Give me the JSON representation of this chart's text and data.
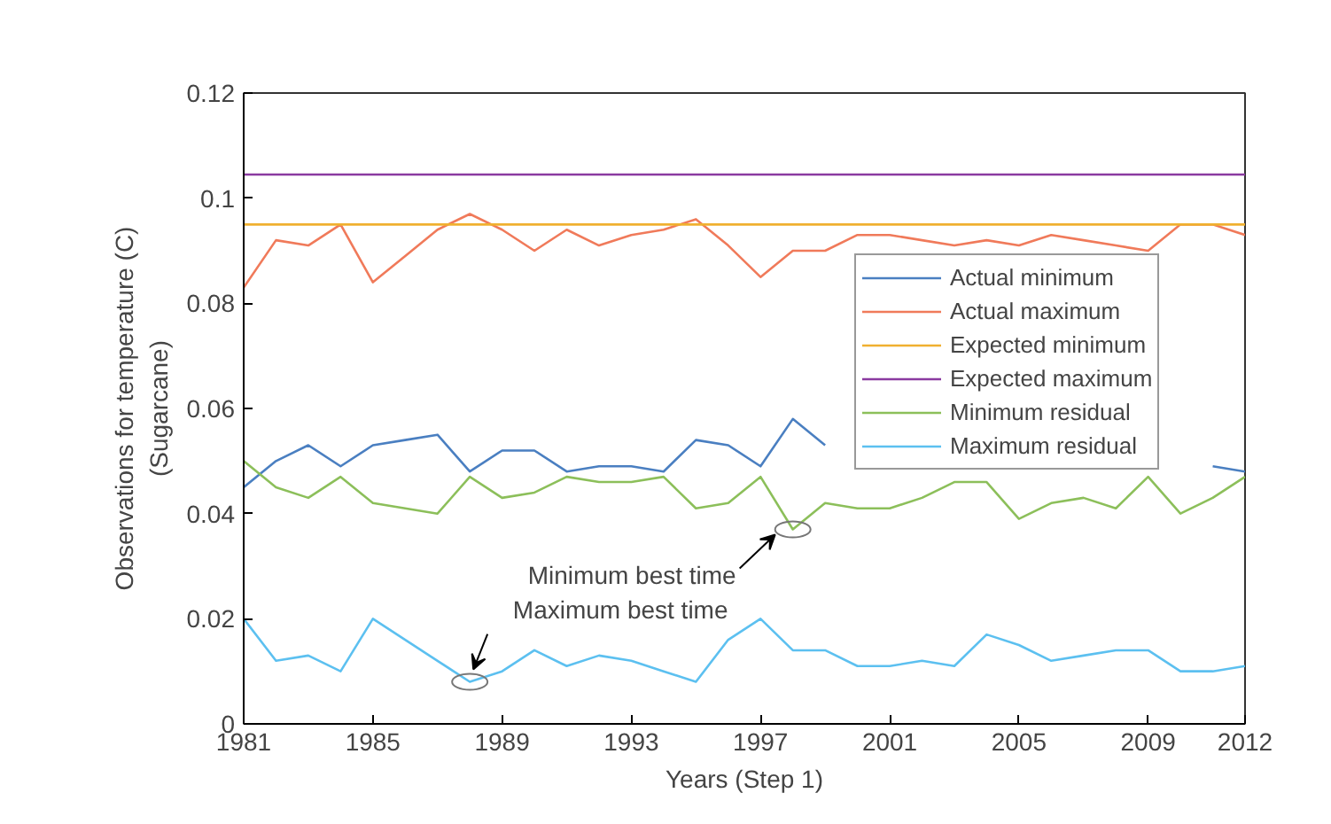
{
  "chart_data": {
    "type": "line",
    "xlabel": "Years (Step 1)",
    "ylabel": "Observations for temperature (C)\n(Sugarcane)",
    "x": [
      1981,
      1982,
      1983,
      1984,
      1985,
      1986,
      1987,
      1988,
      1989,
      1990,
      1991,
      1992,
      1993,
      1994,
      1995,
      1996,
      1997,
      1998,
      1999,
      2000,
      2001,
      2002,
      2003,
      2004,
      2005,
      2006,
      2007,
      2008,
      2009,
      2010,
      2011,
      2012
    ],
    "xlim": [
      1981,
      2012
    ],
    "xticks": [
      1981,
      1985,
      1989,
      1993,
      1997,
      2001,
      2005,
      2009,
      2012
    ],
    "ylim": [
      0,
      0.12
    ],
    "yticks": [
      0,
      0.02,
      0.04,
      0.06,
      0.08,
      0.1,
      0.12
    ],
    "grid": false,
    "legend": "top right",
    "marker": "none",
    "line_style": "solid",
    "series": [
      {
        "name": "Actual minimum",
        "color": "#4a7fc1",
        "values": [
          0.045,
          0.05,
          0.053,
          0.049,
          0.053,
          0.054,
          0.055,
          0.048,
          0.052,
          0.052,
          0.048,
          0.049,
          0.049,
          0.048,
          0.054,
          0.053,
          0.049,
          0.058,
          0.053,
          null,
          null,
          null,
          null,
          null,
          null,
          null,
          null,
          null,
          null,
          null,
          0.049,
          0.048
        ]
      },
      {
        "name": "Actual maximum",
        "color": "#f07a5a",
        "values": [
          0.083,
          0.092,
          0.091,
          0.095,
          0.084,
          0.089,
          0.094,
          0.097,
          0.094,
          0.09,
          0.094,
          0.091,
          0.093,
          0.094,
          0.096,
          0.091,
          0.085,
          0.09,
          0.09,
          0.093,
          0.093,
          0.092,
          0.091,
          0.092,
          0.091,
          0.093,
          0.092,
          0.091,
          0.09,
          0.095,
          0.095,
          0.093
        ]
      },
      {
        "name": "Expected minimum",
        "color": "#f0b030",
        "values": [
          0.095,
          0.095,
          0.095,
          0.095,
          0.095,
          0.095,
          0.095,
          0.095,
          0.095,
          0.095,
          0.095,
          0.095,
          0.095,
          0.095,
          0.095,
          0.095,
          0.095,
          0.095,
          0.095,
          0.095,
          0.095,
          0.095,
          0.095,
          0.095,
          0.095,
          0.095,
          0.095,
          0.095,
          0.095,
          0.095,
          0.095,
          0.095
        ]
      },
      {
        "name": "Expected maximum",
        "color": "#8a3aa0",
        "values": [
          0.1045,
          0.1045,
          0.1045,
          0.1045,
          0.1045,
          0.1045,
          0.1045,
          0.1045,
          0.1045,
          0.1045,
          0.1045,
          0.1045,
          0.1045,
          0.1045,
          0.1045,
          0.1045,
          0.1045,
          0.1045,
          0.1045,
          0.1045,
          0.1045,
          0.1045,
          0.1045,
          0.1045,
          0.1045,
          0.1045,
          0.1045,
          0.1045,
          0.1045,
          0.1045,
          0.1045,
          0.1045
        ]
      },
      {
        "name": "Minimum residual",
        "color": "#8cbf5a",
        "values": [
          0.05,
          0.045,
          0.043,
          0.047,
          0.042,
          0.041,
          0.04,
          0.047,
          0.043,
          0.044,
          0.047,
          0.046,
          0.046,
          0.047,
          0.041,
          0.042,
          0.047,
          0.037,
          0.042,
          0.041,
          0.041,
          0.043,
          0.046,
          0.046,
          0.039,
          0.042,
          0.043,
          0.041,
          0.047,
          0.04,
          0.043,
          0.047
        ]
      },
      {
        "name": "Maximum residual",
        "color": "#5cc0f0",
        "values": [
          0.02,
          0.012,
          0.013,
          0.01,
          0.02,
          0.016,
          0.012,
          0.008,
          0.01,
          0.014,
          0.011,
          0.013,
          0.012,
          0.01,
          0.008,
          0.016,
          0.02,
          0.014,
          0.014,
          0.011,
          0.011,
          0.012,
          0.011,
          0.017,
          0.015,
          0.012,
          0.013,
          0.014,
          0.014,
          0.01,
          0.01,
          0.011
        ]
      }
    ],
    "annotations": [
      {
        "text": "Minimum best time",
        "x": 1998,
        "y": 0.037
      },
      {
        "text": "Maximum best time",
        "x": 1988,
        "y": 0.008
      }
    ]
  }
}
